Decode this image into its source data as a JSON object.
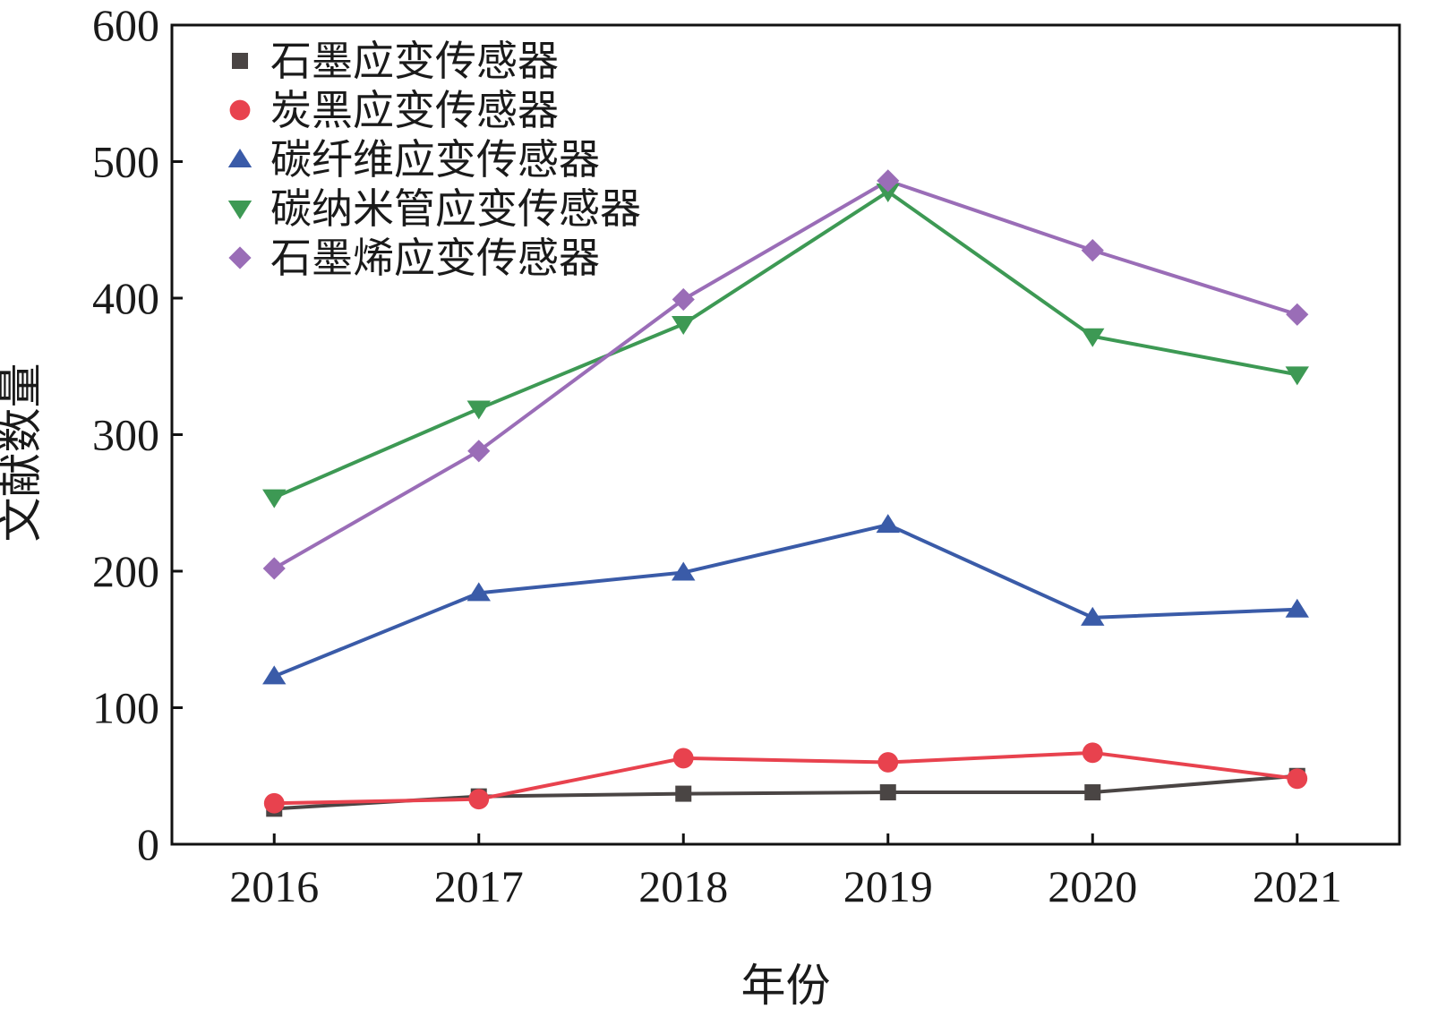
{
  "chart_data": {
    "type": "line",
    "title": "",
    "xlabel": "年份",
    "ylabel": "文献数量",
    "categories": [
      "2016",
      "2017",
      "2018",
      "2019",
      "2020",
      "2021"
    ],
    "ylim": [
      0,
      600
    ],
    "yticks": [
      "0",
      "100",
      "200",
      "300",
      "400",
      "500",
      "600"
    ],
    "grid": false,
    "legend_position": "top-left",
    "series": [
      {
        "name": "石墨应变传感器",
        "marker": "square",
        "color": "#4a4544",
        "values": [
          26,
          35,
          37,
          38,
          38,
          50
        ]
      },
      {
        "name": "炭黑应变传感器",
        "marker": "circle",
        "color": "#e8424e",
        "values": [
          30,
          33,
          63,
          60,
          67,
          48
        ]
      },
      {
        "name": "碳纤维应变传感器",
        "marker": "triangle-up",
        "color": "#3a5ba8",
        "values": [
          123,
          184,
          199,
          234,
          166,
          172
        ]
      },
      {
        "name": "碳纳米管应变传感器",
        "marker": "triangle-down",
        "color": "#3d9954",
        "values": [
          254,
          319,
          381,
          478,
          372,
          344
        ]
      },
      {
        "name": "石墨烯应变传感器",
        "marker": "diamond",
        "color": "#9a6db7",
        "values": [
          202,
          288,
          399,
          486,
          435,
          388
        ]
      }
    ]
  }
}
